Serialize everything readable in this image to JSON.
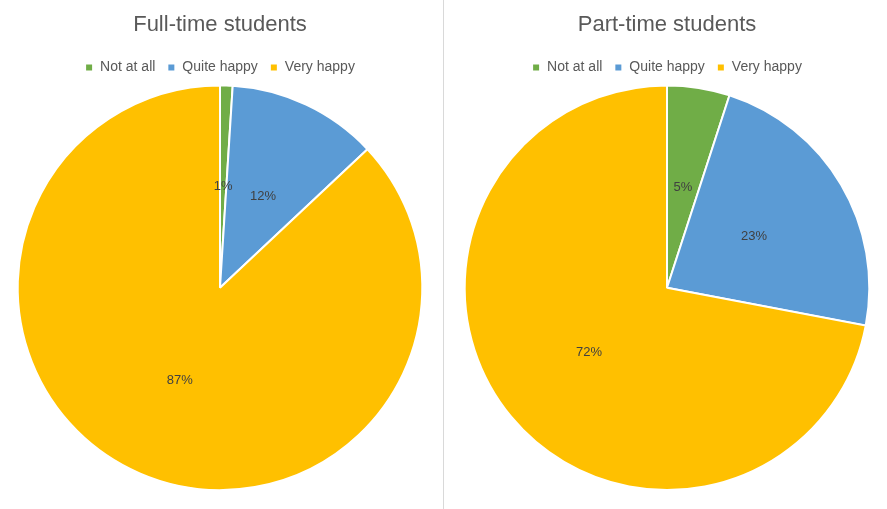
{
  "chart_data": [
    {
      "type": "pie",
      "title": "Full-time students",
      "categories": [
        "Not at all",
        "Quite happy",
        "Very happy"
      ],
      "values": [
        1,
        12,
        87
      ],
      "value_labels": [
        "1%",
        "12%",
        "87%"
      ],
      "colors": [
        "#70ad47",
        "#5b9bd5",
        "#ffc000"
      ],
      "legend": "top",
      "data_labels": true
    },
    {
      "type": "pie",
      "title": "Part-time students",
      "categories": [
        "Not at all",
        "Quite happy",
        "Very happy"
      ],
      "values": [
        5,
        23,
        72
      ],
      "value_labels": [
        "5%",
        "23%",
        "72%"
      ],
      "colors": [
        "#70ad47",
        "#5b9bd5",
        "#ffc000"
      ],
      "legend": "top",
      "data_labels": true
    }
  ]
}
